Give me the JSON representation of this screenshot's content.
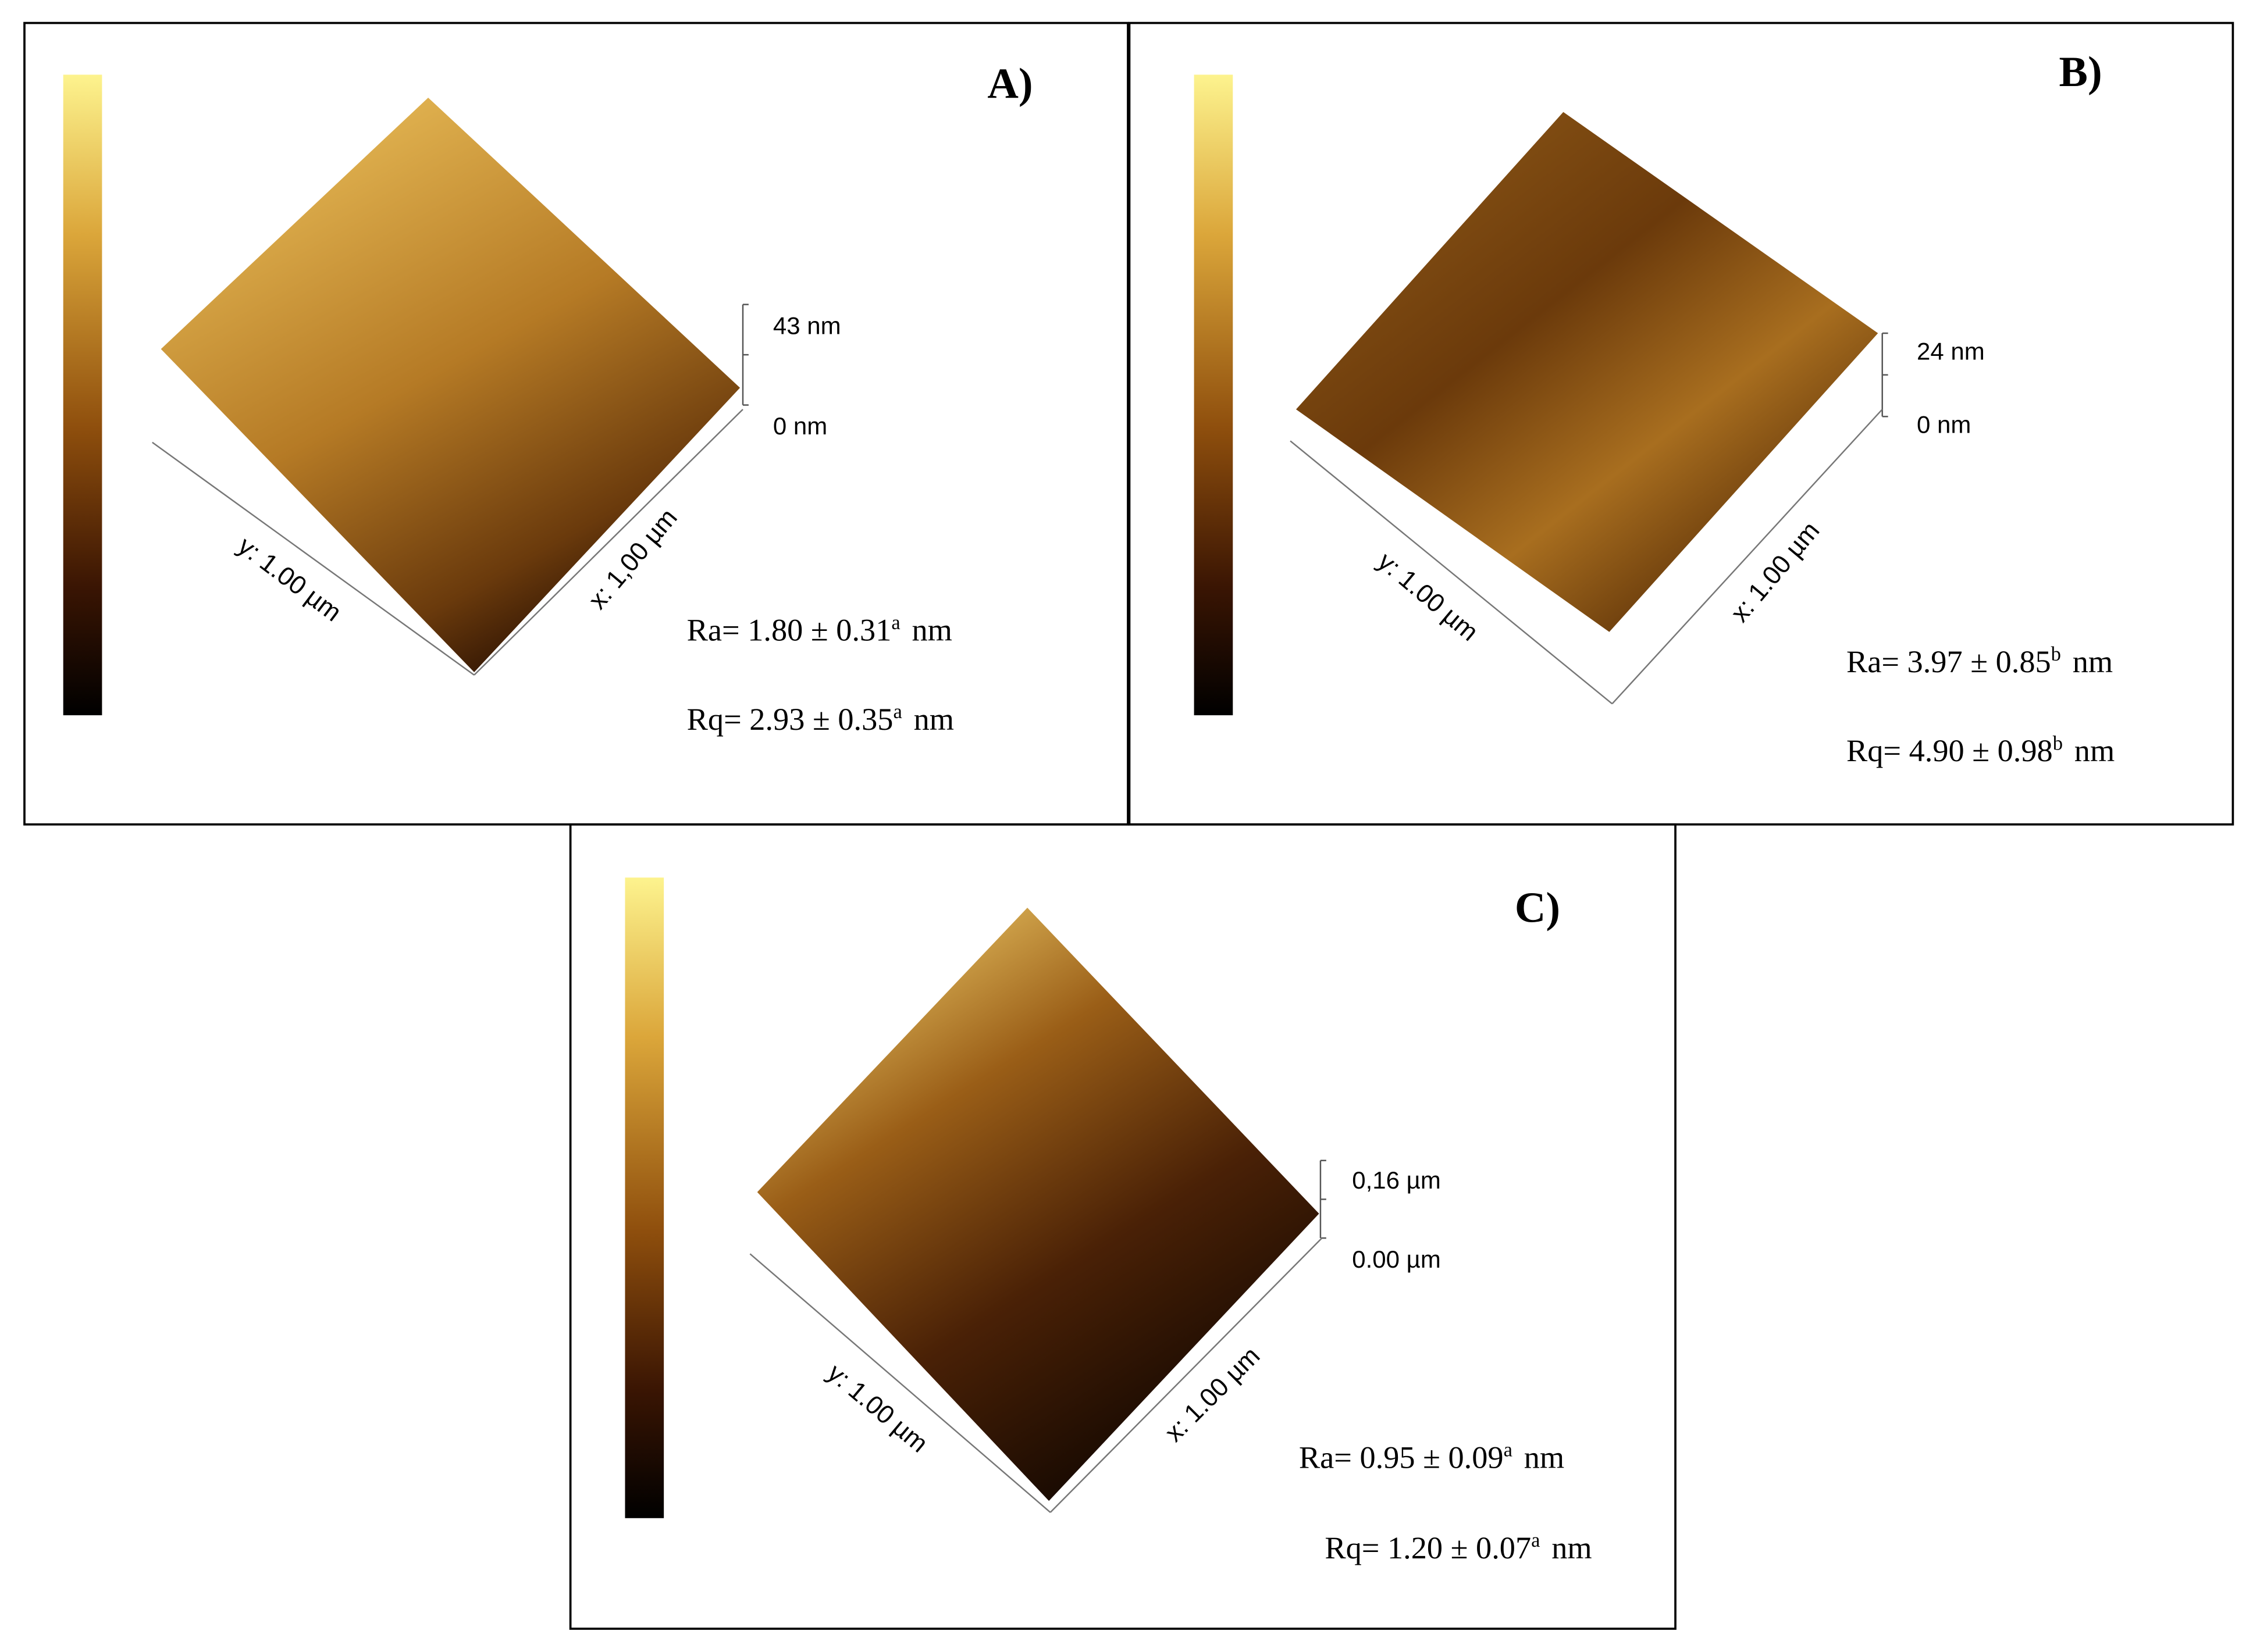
{
  "panels": [
    {
      "label": "A)",
      "z_top": "43 nm",
      "z_bottom": "0 nm",
      "y_axis": "y: 1.00 µm",
      "x_axis": "x: 1,00 µm",
      "ra": {
        "text": "Ra= 1.80 ± 0.31",
        "sup": "a",
        "unit": "nm"
      },
      "rq": {
        "text": "Rq= 2.93 ± 0.35",
        "sup": "a",
        "unit": "nm"
      }
    },
    {
      "label": "B)",
      "z_top": "24 nm",
      "z_bottom": "0 nm",
      "y_axis": "y: 1.00 µm",
      "x_axis": "x: 1.00 µm",
      "ra": {
        "text": "Ra= 3.97 ± 0.85",
        "sup": "b",
        "unit": "nm"
      },
      "rq": {
        "text": "Rq= 4.90 ± 0.98",
        "sup": "b",
        "unit": "nm"
      }
    },
    {
      "label": "C)",
      "z_top": "0,16 µm",
      "z_bottom": "0.00 µm",
      "y_axis": "y: 1.00 µm",
      "x_axis": "x: 1.00 µm",
      "ra": {
        "text": "Ra= 0.95 ± 0.09",
        "sup": "a",
        "unit": "nm"
      },
      "rq": {
        "text": "Rq= 1.20 ± 0.07",
        "sup": "a",
        "unit": "nm"
      }
    }
  ]
}
